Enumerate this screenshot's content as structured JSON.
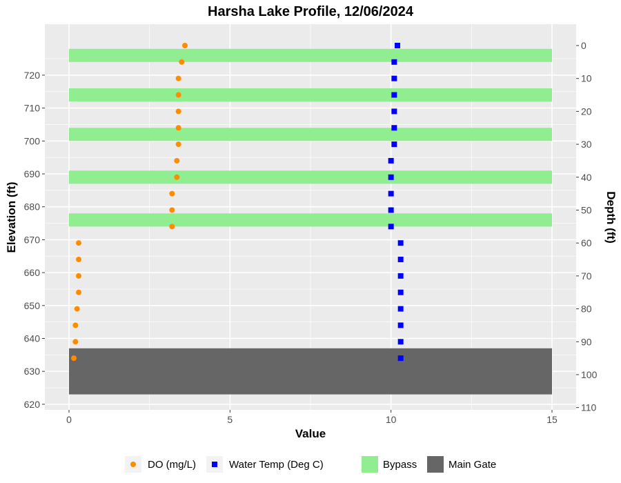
{
  "chart_data": {
    "type": "scatter",
    "title": "Harsha Lake Profile,  12/06/2024",
    "xlabel": "Value",
    "ylabel": "Elevation (ft)",
    "y2label": "Depth (ft)",
    "xlim": [
      -0.75,
      15.75
    ],
    "ylim": [
      618.3,
      735.5
    ],
    "x_ticks": [
      0,
      5,
      10,
      15
    ],
    "y_ticks": [
      620,
      630,
      640,
      650,
      660,
      670,
      680,
      690,
      700,
      710,
      720
    ],
    "y2_ticks": [
      0,
      10,
      20,
      30,
      40,
      50,
      60,
      70,
      80,
      90,
      100,
      110
    ],
    "surface_elevation": 729,
    "grid": true,
    "legend_position": "bottom",
    "colors": {
      "do": "#ff8c00",
      "temp": "#0000ff",
      "bypass": "#90ee90",
      "main_gate": "#666666",
      "panel": "#ebebeb",
      "grid": "#ffffff"
    },
    "series": [
      {
        "name": "DO (mg/L)",
        "marker": "circle",
        "points": [
          {
            "x": 3.6,
            "y": 729
          },
          {
            "x": 3.5,
            "y": 724
          },
          {
            "x": 3.4,
            "y": 719
          },
          {
            "x": 3.4,
            "y": 714
          },
          {
            "x": 3.4,
            "y": 709
          },
          {
            "x": 3.4,
            "y": 704
          },
          {
            "x": 3.4,
            "y": 699
          },
          {
            "x": 3.35,
            "y": 694
          },
          {
            "x": 3.35,
            "y": 689
          },
          {
            "x": 3.2,
            "y": 684
          },
          {
            "x": 3.2,
            "y": 679
          },
          {
            "x": 3.2,
            "y": 674
          },
          {
            "x": 0.3,
            "y": 669
          },
          {
            "x": 0.3,
            "y": 664
          },
          {
            "x": 0.3,
            "y": 659
          },
          {
            "x": 0.3,
            "y": 654
          },
          {
            "x": 0.25,
            "y": 649
          },
          {
            "x": 0.2,
            "y": 644
          },
          {
            "x": 0.2,
            "y": 639
          },
          {
            "x": 0.15,
            "y": 634
          }
        ]
      },
      {
        "name": "Water Temp (Deg C)",
        "marker": "square",
        "points": [
          {
            "x": 10.2,
            "y": 729
          },
          {
            "x": 10.1,
            "y": 724
          },
          {
            "x": 10.1,
            "y": 719
          },
          {
            "x": 10.1,
            "y": 714
          },
          {
            "x": 10.1,
            "y": 709
          },
          {
            "x": 10.1,
            "y": 704
          },
          {
            "x": 10.1,
            "y": 699
          },
          {
            "x": 10.0,
            "y": 694
          },
          {
            "x": 10.0,
            "y": 689
          },
          {
            "x": 10.0,
            "y": 684
          },
          {
            "x": 10.0,
            "y": 679
          },
          {
            "x": 10.0,
            "y": 674
          },
          {
            "x": 10.3,
            "y": 669
          },
          {
            "x": 10.3,
            "y": 664
          },
          {
            "x": 10.3,
            "y": 659
          },
          {
            "x": 10.3,
            "y": 654
          },
          {
            "x": 10.3,
            "y": 649
          },
          {
            "x": 10.3,
            "y": 644
          },
          {
            "x": 10.3,
            "y": 639
          },
          {
            "x": 10.3,
            "y": 634
          }
        ]
      }
    ],
    "bands": [
      {
        "name": "Bypass",
        "kind": "bypass",
        "x": [
          0,
          15
        ],
        "y": [
          724,
          728
        ]
      },
      {
        "name": "Bypass",
        "kind": "bypass",
        "x": [
          0,
          15
        ],
        "y": [
          712,
          716
        ]
      },
      {
        "name": "Bypass",
        "kind": "bypass",
        "x": [
          0,
          15
        ],
        "y": [
          700,
          704
        ]
      },
      {
        "name": "Bypass",
        "kind": "bypass",
        "x": [
          0,
          15
        ],
        "y": [
          687,
          691
        ]
      },
      {
        "name": "Bypass",
        "kind": "bypass",
        "x": [
          0,
          15
        ],
        "y": [
          674,
          678
        ]
      },
      {
        "name": "Main Gate",
        "kind": "main_gate",
        "x": [
          0,
          15
        ],
        "y": [
          623,
          637
        ]
      }
    ],
    "legend": [
      {
        "label": "DO (mg/L)",
        "key": "do"
      },
      {
        "label": "Water Temp (Deg C)",
        "key": "temp"
      },
      {
        "label": "Bypass",
        "key": "bypass"
      },
      {
        "label": "Main Gate",
        "key": "main_gate"
      }
    ]
  }
}
